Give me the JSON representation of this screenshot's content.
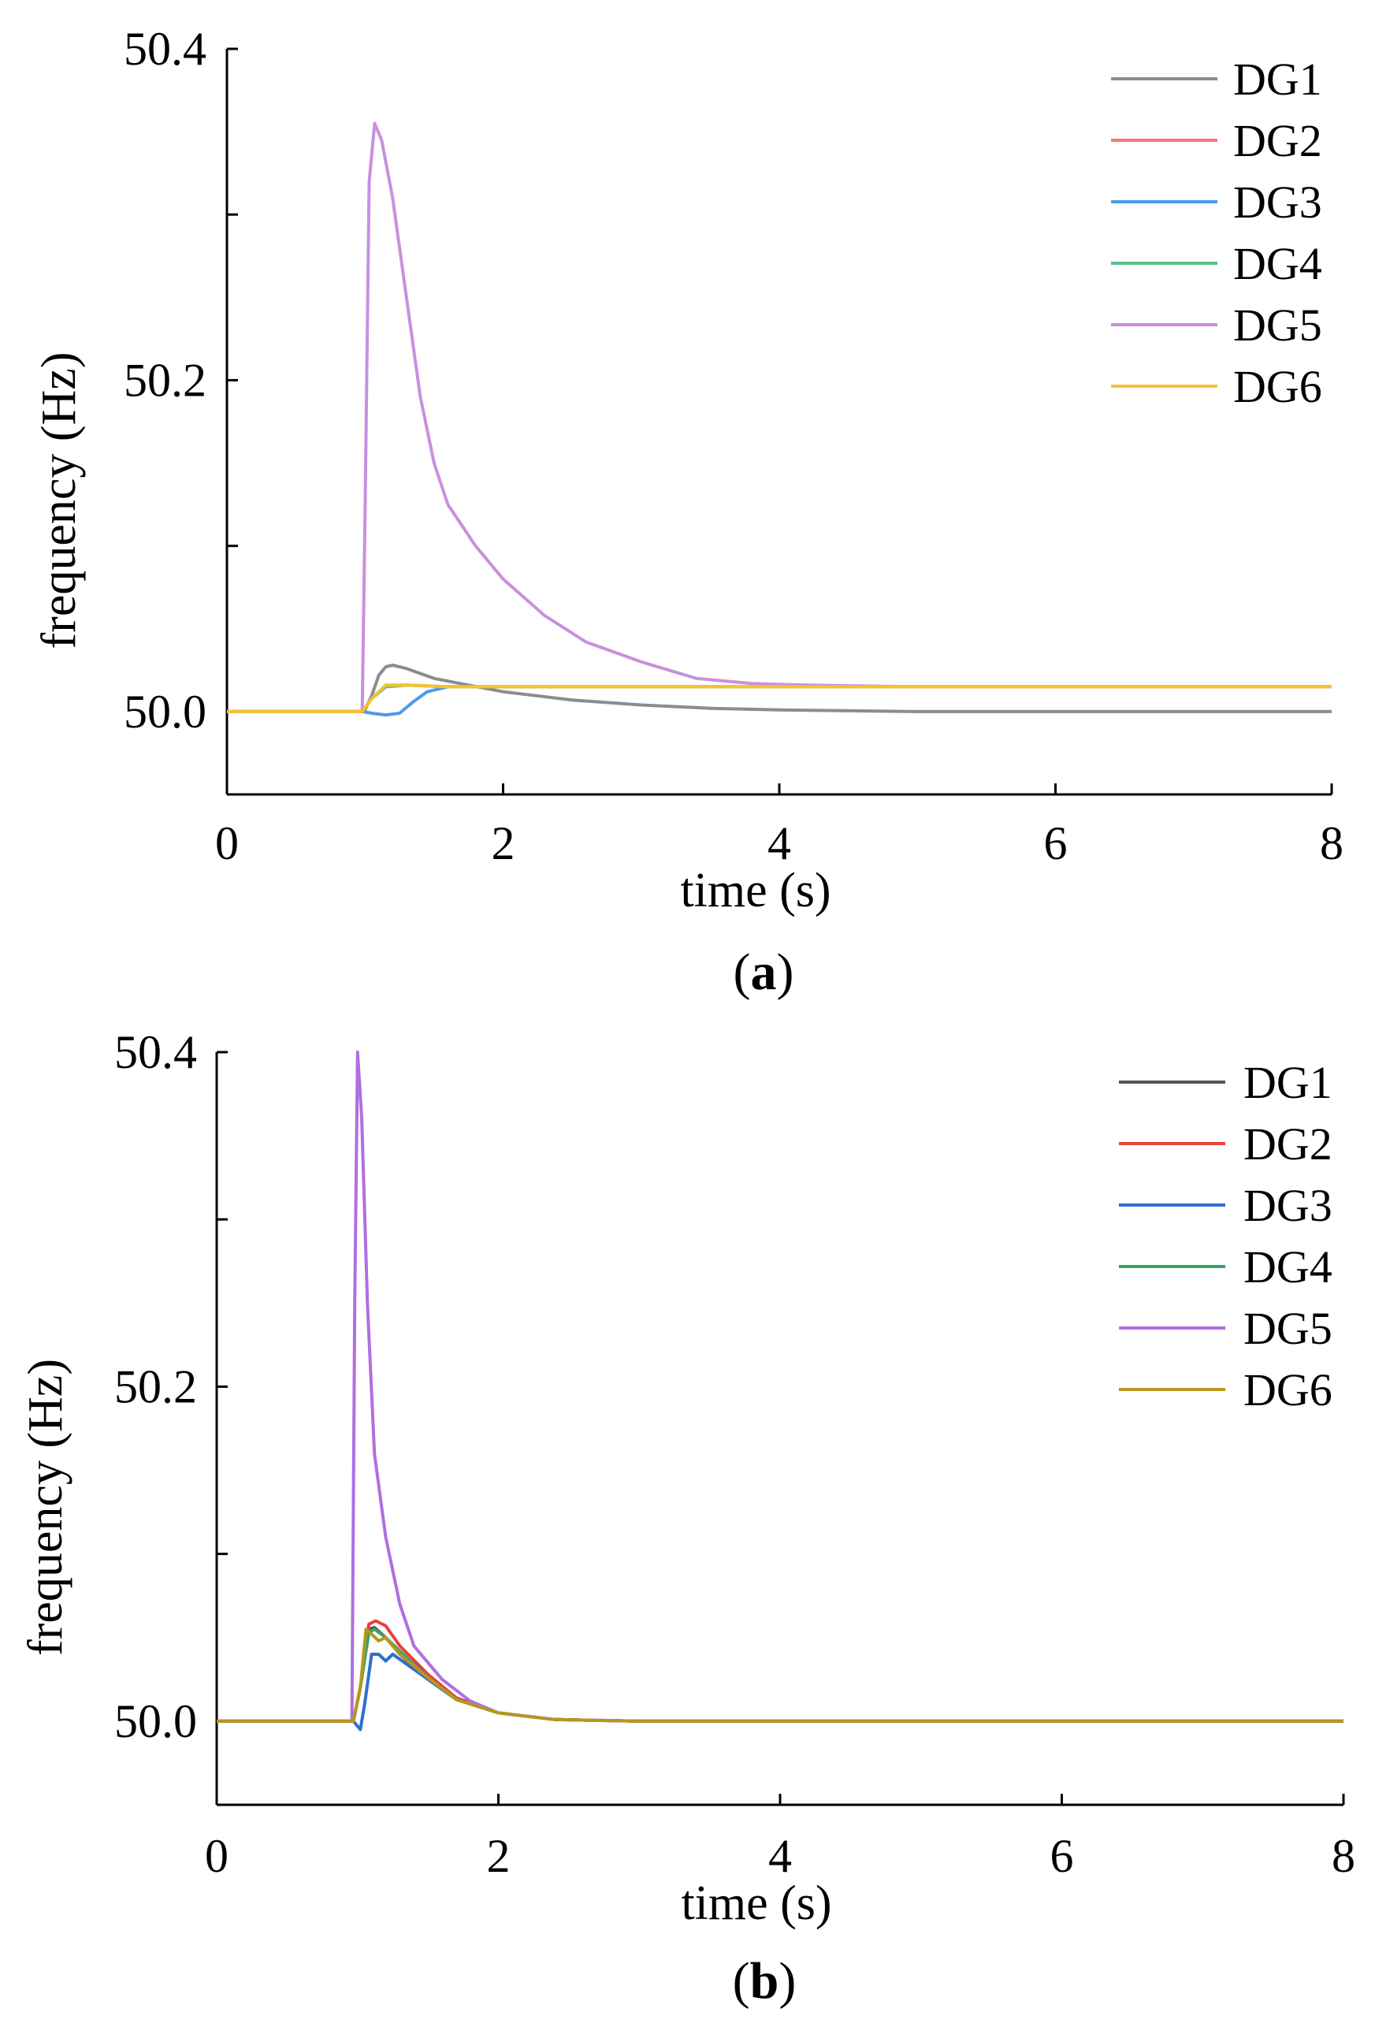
{
  "chart_data": [
    {
      "type": "line",
      "caption_open": "(",
      "caption_letter": "a",
      "caption_close": ")",
      "xlabel": "time (s)",
      "ylabel": "frequency (Hz)",
      "xlim": [
        0,
        8
      ],
      "ylim": [
        49.95,
        50.4
      ],
      "xticks": [
        0,
        2,
        4,
        6,
        8
      ],
      "xtick_labels": [
        "0",
        "2",
        "4",
        "6",
        "8"
      ],
      "yticks": [
        50.0,
        50.1,
        50.2,
        50.3,
        50.4
      ],
      "ytick_labels": [
        "50.0",
        "",
        "50.2",
        "",
        "50.4"
      ],
      "legend_position": "top-right",
      "series": [
        {
          "name": "DG1",
          "color": "#8c8c8c",
          "points": [
            [
              0,
              50
            ],
            [
              0.98,
              50
            ],
            [
              1.0,
              50.001
            ],
            [
              1.05,
              50.01
            ],
            [
              1.1,
              50.022
            ],
            [
              1.15,
              50.027
            ],
            [
              1.2,
              50.028
            ],
            [
              1.3,
              50.026
            ],
            [
              1.5,
              50.02
            ],
            [
              1.75,
              50.016
            ],
            [
              2,
              50.012
            ],
            [
              2.5,
              50.007
            ],
            [
              3,
              50.004
            ],
            [
              3.5,
              50.002
            ],
            [
              4,
              50.001
            ],
            [
              5,
              50.0
            ],
            [
              6,
              50.0
            ],
            [
              8,
              50.0
            ]
          ]
        },
        {
          "name": "DG2",
          "color": "#f47a74",
          "points": [
            [
              0,
              50
            ],
            [
              0.98,
              50
            ],
            [
              1.05,
              50.008
            ],
            [
              1.15,
              50.015
            ],
            [
              1.3,
              50.016
            ],
            [
              1.6,
              50.015
            ],
            [
              2,
              50.015
            ],
            [
              8,
              50.015
            ]
          ]
        },
        {
          "name": "DG3",
          "color": "#4d9be6",
          "points": [
            [
              0,
              50
            ],
            [
              0.98,
              50
            ],
            [
              1.05,
              49.999
            ],
            [
              1.15,
              49.998
            ],
            [
              1.25,
              49.999
            ],
            [
              1.35,
              50.006
            ],
            [
              1.45,
              50.012
            ],
            [
              1.6,
              50.015
            ],
            [
              2,
              50.015
            ],
            [
              8,
              50.015
            ]
          ]
        },
        {
          "name": "DG4",
          "color": "#5cbf8a",
          "points": [
            [
              0,
              50
            ],
            [
              0.98,
              50
            ],
            [
              1.05,
              50.008
            ],
            [
              1.15,
              50.015
            ],
            [
              1.3,
              50.016
            ],
            [
              1.6,
              50.015
            ],
            [
              2,
              50.015
            ],
            [
              8,
              50.015
            ]
          ]
        },
        {
          "name": "DG5",
          "color": "#c890e0",
          "points": [
            [
              0,
              50
            ],
            [
              0.98,
              50
            ],
            [
              1.0,
              50.12
            ],
            [
              1.03,
              50.32
            ],
            [
              1.07,
              50.355
            ],
            [
              1.12,
              50.345
            ],
            [
              1.2,
              50.31
            ],
            [
              1.3,
              50.25
            ],
            [
              1.4,
              50.19
            ],
            [
              1.5,
              50.15
            ],
            [
              1.6,
              50.125
            ],
            [
              1.8,
              50.1
            ],
            [
              2,
              50.08
            ],
            [
              2.3,
              50.058
            ],
            [
              2.6,
              50.042
            ],
            [
              3,
              50.03
            ],
            [
              3.4,
              50.02
            ],
            [
              3.8,
              50.017
            ],
            [
              4.2,
              50.016
            ],
            [
              5,
              50.015
            ],
            [
              8,
              50.015
            ]
          ]
        },
        {
          "name": "DG6",
          "color": "#f5c230",
          "points": [
            [
              0,
              50
            ],
            [
              0.98,
              50
            ],
            [
              1.05,
              50.008
            ],
            [
              1.15,
              50.016
            ],
            [
              1.3,
              50.016
            ],
            [
              1.6,
              50.015
            ],
            [
              2,
              50.015
            ],
            [
              8,
              50.015
            ]
          ]
        }
      ]
    },
    {
      "type": "line",
      "caption_open": "(",
      "caption_letter": "b",
      "caption_close": ")",
      "xlabel": "time (s)",
      "ylabel": "frequency (Hz)",
      "xlim": [
        0,
        8
      ],
      "ylim": [
        49.95,
        50.4
      ],
      "xticks": [
        0,
        2,
        4,
        6,
        8
      ],
      "xtick_labels": [
        "0",
        "2",
        "4",
        "6",
        "8"
      ],
      "yticks": [
        50.0,
        50.1,
        50.2,
        50.3,
        50.4
      ],
      "ytick_labels": [
        "50.0",
        "",
        "50.2",
        "",
        "50.4"
      ],
      "legend_position": "top-right",
      "series": [
        {
          "name": "DG1",
          "color": "#555555",
          "points": [
            [
              0,
              50
            ],
            [
              0.97,
              50
            ],
            [
              1.02,
              50.02
            ],
            [
              1.08,
              50.055
            ],
            [
              1.12,
              50.056
            ],
            [
              1.2,
              50.05
            ],
            [
              1.3,
              50.04
            ],
            [
              1.5,
              50.025
            ],
            [
              1.7,
              50.013
            ],
            [
              2,
              50.005
            ],
            [
              2.4,
              50.001
            ],
            [
              3,
              50.0
            ],
            [
              8,
              50.0
            ]
          ]
        },
        {
          "name": "DG2",
          "color": "#e8403a",
          "points": [
            [
              0,
              50
            ],
            [
              0.97,
              50
            ],
            [
              1.02,
              50.02
            ],
            [
              1.08,
              50.058
            ],
            [
              1.13,
              50.06
            ],
            [
              1.2,
              50.057
            ],
            [
              1.3,
              50.045
            ],
            [
              1.5,
              50.028
            ],
            [
              1.7,
              50.014
            ],
            [
              2,
              50.005
            ],
            [
              2.4,
              50.001
            ],
            [
              3,
              50.0
            ],
            [
              8,
              50.0
            ]
          ]
        },
        {
          "name": "DG3",
          "color": "#2d6fd1",
          "points": [
            [
              0,
              50
            ],
            [
              0.97,
              50
            ],
            [
              1.02,
              49.995
            ],
            [
              1.05,
              50.01
            ],
            [
              1.1,
              50.04
            ],
            [
              1.15,
              50.04
            ],
            [
              1.2,
              50.036
            ],
            [
              1.25,
              50.04
            ],
            [
              1.3,
              50.037
            ],
            [
              1.5,
              50.025
            ],
            [
              1.7,
              50.013
            ],
            [
              2,
              50.005
            ],
            [
              2.4,
              50.001
            ],
            [
              3,
              50.0
            ],
            [
              8,
              50.0
            ]
          ]
        },
        {
          "name": "DG4",
          "color": "#3aa36a",
          "points": [
            [
              0,
              50
            ],
            [
              0.97,
              50
            ],
            [
              1.02,
              50.02
            ],
            [
              1.08,
              50.053
            ],
            [
              1.12,
              50.055
            ],
            [
              1.2,
              50.05
            ],
            [
              1.3,
              50.042
            ],
            [
              1.5,
              50.026
            ],
            [
              1.7,
              50.013
            ],
            [
              2,
              50.005
            ],
            [
              2.4,
              50.001
            ],
            [
              3,
              50.0
            ],
            [
              8,
              50.0
            ]
          ]
        },
        {
          "name": "DG5",
          "color": "#b06ee0",
          "points": [
            [
              0,
              50
            ],
            [
              0.96,
              50
            ],
            [
              0.98,
              50.25
            ],
            [
              1.0,
              50.4
            ],
            [
              1.03,
              50.36
            ],
            [
              1.07,
              50.25
            ],
            [
              1.12,
              50.16
            ],
            [
              1.2,
              50.11
            ],
            [
              1.3,
              50.07
            ],
            [
              1.4,
              50.045
            ],
            [
              1.6,
              50.025
            ],
            [
              1.8,
              50.012
            ],
            [
              2,
              50.005
            ],
            [
              2.4,
              50.001
            ],
            [
              3,
              50.0
            ],
            [
              8,
              50.0
            ]
          ]
        },
        {
          "name": "DG6",
          "color": "#b8961f",
          "points": [
            [
              0,
              50
            ],
            [
              0.97,
              50
            ],
            [
              1.02,
              50.02
            ],
            [
              1.06,
              50.055
            ],
            [
              1.1,
              50.052
            ],
            [
              1.15,
              50.048
            ],
            [
              1.2,
              50.05
            ],
            [
              1.3,
              50.04
            ],
            [
              1.5,
              50.026
            ],
            [
              1.7,
              50.013
            ],
            [
              2,
              50.005
            ],
            [
              2.4,
              50.001
            ],
            [
              3,
              50.0
            ],
            [
              8,
              50.0
            ]
          ]
        }
      ]
    }
  ]
}
